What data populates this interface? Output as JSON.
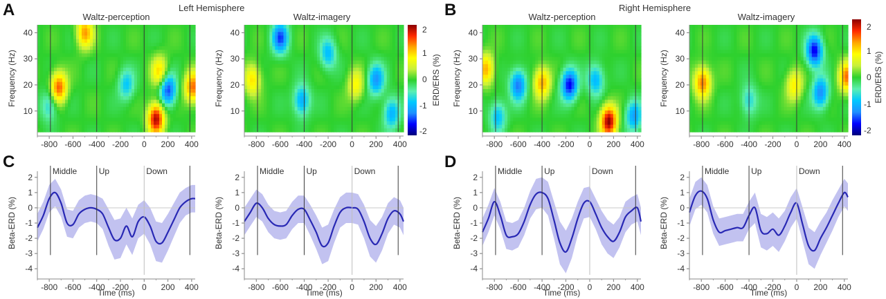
{
  "figure": {
    "panel_letters": [
      "A",
      "B",
      "C",
      "D"
    ],
    "hemisphere_titles": [
      "Left Hemisphere",
      "Right Hemisphere"
    ],
    "condition_titles": [
      "Waltz-perception",
      "Waltz-imagery"
    ],
    "colorbar": {
      "label": "ERD/ERS (%)",
      "ticks": [
        "2",
        "1",
        "0",
        "-1",
        "-2"
      ],
      "range": [
        -2.3,
        2.3
      ],
      "colors": [
        "#00007a",
        "#0000ff",
        "#1e90ff",
        "#00c8ff",
        "#5cf0b0",
        "#2ed12e",
        "#c8f03c",
        "#ffff00",
        "#ffa500",
        "#ff2a00",
        "#8b0000"
      ]
    }
  },
  "chart_data": [
    {
      "type": "heatmap",
      "panel": "A",
      "hemisphere": "Left Hemisphere",
      "title": "Waltz-perception",
      "xlabel": "",
      "ylabel": "Frequency (Hz)",
      "xlim": [
        -900,
        430
      ],
      "ylim": [
        2,
        43
      ],
      "xticks": [
        "-800",
        "-600",
        "-400",
        "-200",
        "0",
        "200",
        "400"
      ],
      "yticks": [
        "10",
        "20",
        "30",
        "40"
      ],
      "event_lines": [
        -790,
        -400,
        0,
        385
      ],
      "blobs": [
        {
          "t": -720,
          "f": 19,
          "amp": 1.7
        },
        {
          "t": -500,
          "f": 40,
          "amp": 1.4
        },
        {
          "t": 100,
          "f": 7,
          "amp": 2.2
        },
        {
          "t": 130,
          "f": 25,
          "amp": 1.1
        },
        {
          "t": 410,
          "f": 19,
          "amp": 1.6
        },
        {
          "t": 200,
          "f": 18,
          "amp": -1.7
        },
        {
          "t": -150,
          "f": 20,
          "amp": -0.9
        },
        {
          "t": -800,
          "f": 12,
          "amp": -0.8
        }
      ]
    },
    {
      "type": "heatmap",
      "panel": "A",
      "hemisphere": "Left Hemisphere",
      "title": "Waltz-imagery",
      "xlabel": "",
      "ylabel": "Frequency (Hz)",
      "xlim": [
        -900,
        430
      ],
      "ylim": [
        2,
        43
      ],
      "xticks": [
        "-800",
        "-600",
        "-400",
        "-200",
        "0",
        "200",
        "400"
      ],
      "yticks": [
        "10",
        "20",
        "30",
        "40"
      ],
      "event_lines": [
        -790,
        -400,
        0,
        385
      ],
      "blobs": [
        {
          "t": -830,
          "f": 22,
          "amp": 1.1
        },
        {
          "t": -600,
          "f": 38,
          "amp": -1.6
        },
        {
          "t": -420,
          "f": 14,
          "amp": -1.2
        },
        {
          "t": -200,
          "f": 32,
          "amp": -1.0
        },
        {
          "t": 30,
          "f": 20,
          "amp": 0.9
        },
        {
          "t": 200,
          "f": 22,
          "amp": -1.3
        },
        {
          "t": 330,
          "f": 9,
          "amp": -1.1
        }
      ]
    },
    {
      "type": "heatmap",
      "panel": "B",
      "hemisphere": "Right Hemisphere",
      "title": "Waltz-perception",
      "xlabel": "",
      "ylabel": "Frequency (Hz)",
      "xlim": [
        -900,
        430
      ],
      "ylim": [
        2,
        43
      ],
      "xticks": [
        "-800",
        "-600",
        "-400",
        "-200",
        "0",
        "200",
        "400"
      ],
      "yticks": [
        "10",
        "20",
        "30",
        "40"
      ],
      "event_lines": [
        -790,
        -400,
        0,
        385
      ],
      "blobs": [
        {
          "t": -870,
          "f": 26,
          "amp": 1.3
        },
        {
          "t": -600,
          "f": 20,
          "amp": -1.5
        },
        {
          "t": -400,
          "f": 21,
          "amp": 1.4
        },
        {
          "t": -170,
          "f": 20,
          "amp": -1.9
        },
        {
          "t": 50,
          "f": 22,
          "amp": -1.1
        },
        {
          "t": 160,
          "f": 6,
          "amp": 2.3
        },
        {
          "t": 370,
          "f": 8,
          "amp": -1.2
        },
        {
          "t": -770,
          "f": 8,
          "amp": -1.0
        }
      ]
    },
    {
      "type": "heatmap",
      "panel": "B",
      "hemisphere": "Right Hemisphere",
      "title": "Waltz-imagery",
      "xlabel": "",
      "ylabel": "Frequency (Hz)",
      "xlim": [
        -900,
        430
      ],
      "ylim": [
        2,
        43
      ],
      "xticks": [
        "-800",
        "-600",
        "-400",
        "-200",
        "0",
        "200",
        "400"
      ],
      "yticks": [
        "10",
        "20",
        "30",
        "40"
      ],
      "event_lines": [
        -790,
        -400,
        0,
        385
      ],
      "blobs": [
        {
          "t": -790,
          "f": 21,
          "amp": 1.6
        },
        {
          "t": 150,
          "f": 33,
          "amp": -1.9
        },
        {
          "t": 200,
          "f": 17,
          "amp": -1.4
        },
        {
          "t": 420,
          "f": 23,
          "amp": 1.5
        },
        {
          "t": -20,
          "f": 20,
          "amp": 1.0
        },
        {
          "t": -400,
          "f": 14,
          "amp": -0.8
        }
      ]
    },
    {
      "type": "line",
      "panel": "C",
      "xlabel": "Time (ms)",
      "ylabel": "Beta-ERD (%)",
      "xlim": [
        -900,
        430
      ],
      "ylim": [
        -4.4,
        2.4
      ],
      "xticks": [
        "-800",
        "-600",
        "-400",
        "-200",
        "0",
        "200",
        "400"
      ],
      "yticks": [
        "2",
        "1",
        "0",
        "-1",
        "-2",
        "-3",
        "-4"
      ],
      "event_lines": [
        -790,
        -400,
        0,
        385
      ],
      "event_labels": [
        "Middle",
        "Up",
        "Down"
      ],
      "x": [
        -900,
        -850,
        -800,
        -750,
        -700,
        -650,
        -600,
        -550,
        -500,
        -450,
        -400,
        -350,
        -300,
        -250,
        -200,
        -150,
        -100,
        -50,
        0,
        50,
        100,
        150,
        200,
        250,
        300,
        350,
        400,
        430
      ],
      "mean": [
        -1.3,
        -0.5,
        0.6,
        1.0,
        0.3,
        -1.0,
        -1.1,
        -0.4,
        -0.1,
        0.0,
        -0.1,
        -0.4,
        -1.3,
        -2.1,
        -2.0,
        -1.2,
        -1.9,
        -0.9,
        -0.6,
        -1.2,
        -2.2,
        -2.3,
        -1.6,
        -0.8,
        0.0,
        0.4,
        0.6,
        0.6
      ],
      "ci_half": [
        0.9,
        0.9,
        0.9,
        0.9,
        0.9,
        0.9,
        0.9,
        0.9,
        0.9,
        0.9,
        0.9,
        1.0,
        1.2,
        1.3,
        1.3,
        1.2,
        1.2,
        1.1,
        1.1,
        1.2,
        1.3,
        1.3,
        1.2,
        1.1,
        1.0,
        0.9,
        0.9,
        0.9
      ],
      "color": "#2828b4",
      "band_color": "#c2c2f0"
    },
    {
      "type": "line",
      "panel": "C",
      "xlabel": "Time (ms)",
      "ylabel": "Beta-ERD (%)",
      "xlim": [
        -900,
        430
      ],
      "ylim": [
        -4.4,
        2.4
      ],
      "xticks": [
        "-800",
        "-600",
        "-400",
        "-200",
        "0",
        "200",
        "400"
      ],
      "yticks": [
        "2",
        "1",
        "0",
        "-1",
        "-2",
        "-3",
        "-4"
      ],
      "event_lines": [
        -790,
        -400,
        0,
        385
      ],
      "event_labels": [
        "Middle",
        "Up",
        "Down"
      ],
      "x": [
        -900,
        -850,
        -800,
        -750,
        -700,
        -650,
        -600,
        -550,
        -500,
        -450,
        -400,
        -350,
        -300,
        -250,
        -200,
        -150,
        -100,
        -50,
        0,
        50,
        100,
        150,
        200,
        250,
        300,
        350,
        400,
        430
      ],
      "mean": [
        -0.9,
        -0.3,
        0.3,
        0.0,
        -0.7,
        -1.1,
        -1.2,
        -1.1,
        -0.5,
        -0.1,
        -0.1,
        -0.8,
        -1.6,
        -2.5,
        -2.3,
        -1.2,
        -0.3,
        0.0,
        0.0,
        -0.1,
        -0.9,
        -2.0,
        -2.4,
        -1.7,
        -0.7,
        -0.2,
        -0.4,
        -0.9
      ],
      "ci_half": [
        0.9,
        0.9,
        0.9,
        0.9,
        0.9,
        0.9,
        0.9,
        0.9,
        0.9,
        0.9,
        0.9,
        1.0,
        1.1,
        1.2,
        1.2,
        1.1,
        1.0,
        1.0,
        1.0,
        1.0,
        1.1,
        1.2,
        1.2,
        1.1,
        1.0,
        0.9,
        0.9,
        0.9
      ],
      "color": "#2828b4",
      "band_color": "#c2c2f0"
    },
    {
      "type": "line",
      "panel": "D",
      "xlabel": "Time (ms)",
      "ylabel": "Beta-ERD (%)",
      "xlim": [
        -900,
        430
      ],
      "ylim": [
        -4.4,
        2.4
      ],
      "xticks": [
        "-800",
        "-600",
        "-400",
        "-200",
        "0",
        "200",
        "400"
      ],
      "yticks": [
        "2",
        "1",
        "0",
        "-1",
        "-2",
        "-3",
        "-4"
      ],
      "event_lines": [
        -790,
        -400,
        0,
        385
      ],
      "event_labels": [
        "Middle",
        "Up",
        "Down"
      ],
      "x": [
        -900,
        -850,
        -800,
        -750,
        -700,
        -650,
        -600,
        -550,
        -500,
        -450,
        -400,
        -350,
        -300,
        -250,
        -200,
        -150,
        -100,
        -50,
        0,
        50,
        100,
        150,
        200,
        250,
        300,
        350,
        400,
        430
      ],
      "mean": [
        -1.6,
        -0.7,
        0.4,
        -0.5,
        -1.8,
        -1.9,
        -1.7,
        -0.9,
        0.2,
        0.9,
        1.0,
        0.6,
        -0.8,
        -2.3,
        -2.9,
        -2.0,
        -0.7,
        0.3,
        0.4,
        -0.4,
        -1.3,
        -1.9,
        -2.2,
        -1.6,
        -0.6,
        -0.2,
        0.0,
        -0.9
      ],
      "ci_half": [
        0.9,
        0.9,
        0.9,
        0.9,
        0.9,
        0.9,
        0.9,
        0.9,
        0.9,
        1.0,
        1.0,
        1.1,
        1.2,
        1.4,
        1.4,
        1.3,
        1.1,
        1.0,
        1.0,
        1.0,
        1.1,
        1.1,
        1.1,
        1.0,
        1.0,
        0.9,
        0.9,
        0.9
      ],
      "color": "#2828b4",
      "band_color": "#c2c2f0"
    },
    {
      "type": "line",
      "panel": "D",
      "xlabel": "Time (ms)",
      "ylabel": "Beta-ERD (%)",
      "xlim": [
        -900,
        430
      ],
      "ylim": [
        -4.4,
        2.4
      ],
      "xticks": [
        "-800",
        "-600",
        "-400",
        "-200",
        "0",
        "200",
        "400"
      ],
      "yticks": [
        "2",
        "1",
        "0",
        "-1",
        "-2",
        "-3",
        "-4"
      ],
      "event_lines": [
        -790,
        -400,
        0,
        385
      ],
      "event_labels": [
        "Middle",
        "Up",
        "Down"
      ],
      "x": [
        -900,
        -850,
        -800,
        -750,
        -700,
        -650,
        -600,
        -550,
        -500,
        -450,
        -400,
        -350,
        -300,
        -250,
        -200,
        -150,
        -100,
        -50,
        0,
        50,
        100,
        150,
        200,
        250,
        300,
        350,
        400,
        430
      ],
      "mean": [
        -0.3,
        0.8,
        1.1,
        0.6,
        -0.8,
        -1.6,
        -1.5,
        -1.4,
        -1.3,
        -1.3,
        -0.5,
        0.0,
        -1.5,
        -1.7,
        -1.4,
        -1.8,
        -1.2,
        -0.3,
        0.3,
        -1.1,
        -2.5,
        -2.8,
        -2.0,
        -1.3,
        -0.5,
        0.3,
        1.0,
        0.7
      ],
      "ci_half": [
        0.9,
        0.9,
        0.9,
        0.9,
        0.9,
        0.9,
        0.9,
        0.9,
        0.9,
        0.9,
        0.9,
        1.0,
        1.1,
        1.1,
        1.1,
        1.1,
        1.0,
        1.0,
        1.0,
        1.1,
        1.2,
        1.2,
        1.1,
        1.0,
        1.0,
        0.9,
        0.9,
        0.9
      ],
      "color": "#2828b4",
      "band_color": "#c2c2f0"
    }
  ]
}
